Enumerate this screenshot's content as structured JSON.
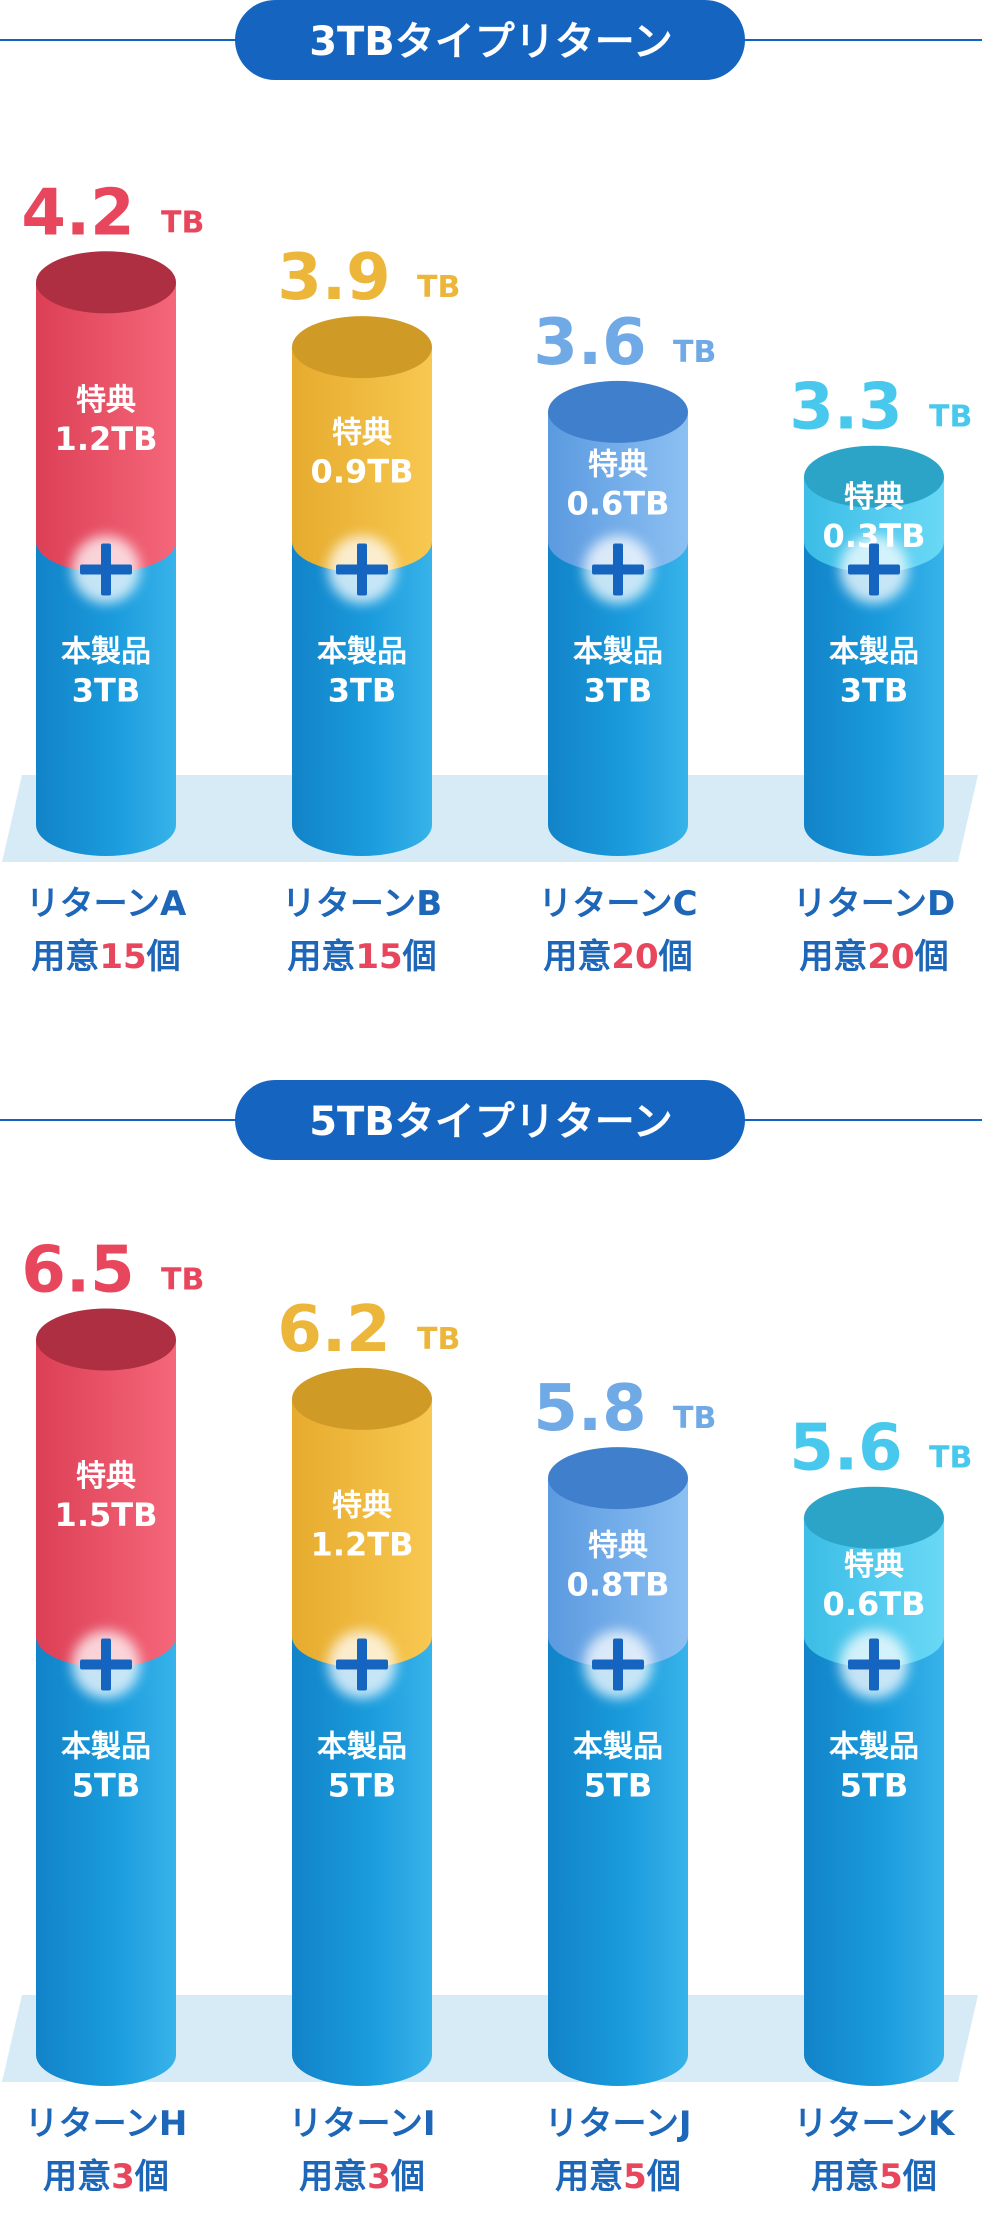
{
  "colors": {
    "accent_blue": "#1565c0",
    "base_blue": "#1592d5",
    "floor": "#d7ebf7",
    "red": "#e8465c",
    "gold": "#ecb63a",
    "light_blue": "#6fa9e6",
    "cyan": "#48c8ec",
    "count_red": "#e8465c",
    "label_dark": "#1d66b8"
  },
  "icons": {
    "plus": "plus-icon"
  },
  "sections": [
    {
      "banner": "3TBタイプリターン",
      "chart_data": {
        "type": "bar",
        "stacked": true,
        "unit": "TB",
        "ylim": [
          0,
          4.2
        ],
        "categories": [
          "リターンA",
          "リターンB",
          "リターンC",
          "リターンD"
        ],
        "series": [
          {
            "name": "本製品",
            "values": [
              3,
              3,
              3,
              3
            ]
          },
          {
            "name": "特典",
            "values": [
              1.2,
              0.9,
              0.6,
              0.3
            ]
          }
        ]
      },
      "returns": [
        {
          "total_value": "4.2",
          "unit": "TB",
          "bonus_title": "特典",
          "bonus_value": "1.2TB",
          "base_title": "本製品",
          "base_value": "3TB",
          "name": "リターンA",
          "count_prefix": "用意",
          "count": "15",
          "count_suffix": "個",
          "color": "red"
        },
        {
          "total_value": "3.9",
          "unit": "TB",
          "bonus_title": "特典",
          "bonus_value": "0.9TB",
          "base_title": "本製品",
          "base_value": "3TB",
          "name": "リターンB",
          "count_prefix": "用意",
          "count": "15",
          "count_suffix": "個",
          "color": "gold"
        },
        {
          "total_value": "3.6",
          "unit": "TB",
          "bonus_title": "特典",
          "bonus_value": "0.6TB",
          "base_title": "本製品",
          "base_value": "3TB",
          "name": "リターンC",
          "count_prefix": "用意",
          "count": "20",
          "count_suffix": "個",
          "color": "light_blue"
        },
        {
          "total_value": "3.3",
          "unit": "TB",
          "bonus_title": "特典",
          "bonus_value": "0.3TB",
          "base_title": "本製品",
          "base_value": "3TB",
          "name": "リターンD",
          "count_prefix": "用意",
          "count": "20",
          "count_suffix": "個",
          "color": "cyan"
        }
      ]
    },
    {
      "banner": "5TBタイプリターン",
      "chart_data": {
        "type": "bar",
        "stacked": true,
        "unit": "TB",
        "ylim": [
          0,
          6.5
        ],
        "categories": [
          "リターンH",
          "リターンI",
          "リターンJ",
          "リターンK"
        ],
        "series": [
          {
            "name": "本製品",
            "values": [
              5,
              5,
              5,
              5
            ]
          },
          {
            "name": "特典",
            "values": [
              1.5,
              1.2,
              0.8,
              0.6
            ]
          }
        ]
      },
      "returns": [
        {
          "total_value": "6.5",
          "unit": "TB",
          "bonus_title": "特典",
          "bonus_value": "1.5TB",
          "base_title": "本製品",
          "base_value": "5TB",
          "name": "リターンH",
          "count_prefix": "用意",
          "count": "3",
          "count_suffix": "個",
          "color": "red"
        },
        {
          "total_value": "6.2",
          "unit": "TB",
          "bonus_title": "特典",
          "bonus_value": "1.2TB",
          "base_title": "本製品",
          "base_value": "5TB",
          "name": "リターンI",
          "count_prefix": "用意",
          "count": "3",
          "count_suffix": "個",
          "color": "gold"
        },
        {
          "total_value": "5.8",
          "unit": "TB",
          "bonus_title": "特典",
          "bonus_value": "0.8TB",
          "base_title": "本製品",
          "base_value": "5TB",
          "name": "リターンJ",
          "count_prefix": "用意",
          "count": "5",
          "count_suffix": "個",
          "color": "light_blue"
        },
        {
          "total_value": "5.6",
          "unit": "TB",
          "bonus_title": "特典",
          "bonus_value": "0.6TB",
          "base_title": "本製品",
          "base_value": "5TB",
          "name": "リターンK",
          "count_prefix": "用意",
          "count": "5",
          "count_suffix": "個",
          "color": "cyan"
        }
      ]
    }
  ]
}
